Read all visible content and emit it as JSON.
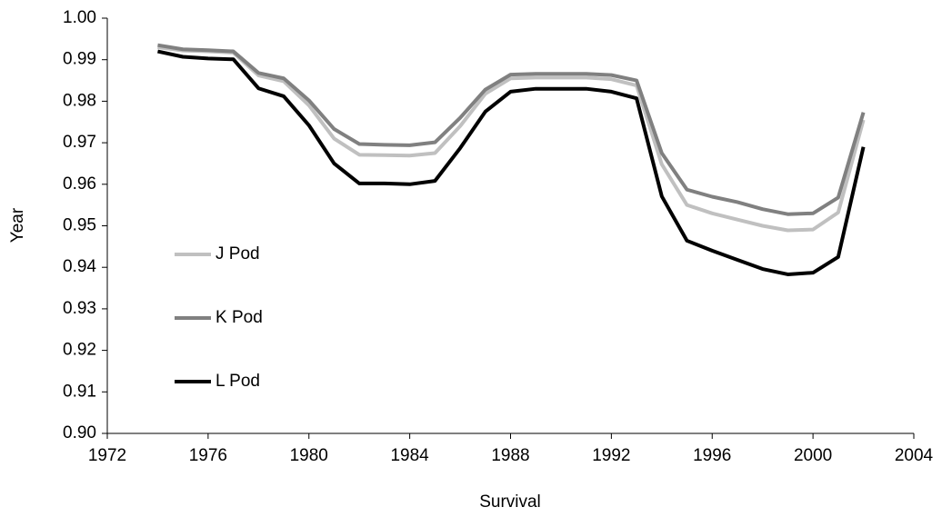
{
  "chart_data": {
    "type": "line",
    "x_label": "Survival",
    "y_label": "Year",
    "x": [
      1974,
      1975,
      1976,
      1977,
      1978,
      1979,
      1980,
      1981,
      1982,
      1983,
      1984,
      1985,
      1986,
      1987,
      1988,
      1989,
      1990,
      1991,
      1992,
      1993,
      1994,
      1995,
      1996,
      1997,
      1998,
      1999,
      2000,
      2001,
      2002
    ],
    "series": [
      {
        "name": "J Pod",
        "color": "#c0c0c0",
        "values": [
          0.993,
          0.9922,
          0.992,
          0.9917,
          0.9862,
          0.9848,
          0.979,
          0.971,
          0.9671,
          0.967,
          0.9669,
          0.9675,
          0.974,
          0.9818,
          0.9855,
          0.9857,
          0.9857,
          0.9857,
          0.9853,
          0.9838,
          0.9648,
          0.955,
          0.953,
          0.9515,
          0.95,
          0.9489,
          0.9491,
          0.9532,
          0.9755
        ]
      },
      {
        "name": "K Pod",
        "color": "#808080",
        "values": [
          0.9935,
          0.9925,
          0.9923,
          0.992,
          0.9868,
          0.9855,
          0.9802,
          0.9733,
          0.9697,
          0.9695,
          0.9694,
          0.9701,
          0.976,
          0.9828,
          0.9864,
          0.9866,
          0.9866,
          0.9866,
          0.9863,
          0.985,
          0.9675,
          0.9587,
          0.957,
          0.9557,
          0.954,
          0.9528,
          0.953,
          0.9568,
          0.9773
        ]
      },
      {
        "name": "L Pod",
        "color": "#000000",
        "values": [
          0.992,
          0.9907,
          0.9903,
          0.9901,
          0.9831,
          0.9812,
          0.9742,
          0.965,
          0.9602,
          0.9602,
          0.96,
          0.9608,
          0.9687,
          0.9775,
          0.9823,
          0.983,
          0.983,
          0.983,
          0.9823,
          0.9807,
          0.9571,
          0.9464,
          0.944,
          0.9418,
          0.9396,
          0.9383,
          0.9387,
          0.9425,
          0.969
        ]
      }
    ],
    "xlim": [
      1972,
      2004
    ],
    "xticks": [
      1972,
      1976,
      1980,
      1984,
      1988,
      1992,
      1996,
      2000,
      2004
    ],
    "ylim": [
      0.9,
      1.0
    ],
    "yticks": [
      {
        "value": 0.9,
        "label": "0.90"
      },
      0.91,
      0.92,
      0.93,
      0.94,
      0.95,
      0.96,
      0.97,
      0.98,
      0.99,
      {
        "value": 1.0,
        "label": "1.00"
      }
    ],
    "grid": false,
    "legend": "left"
  }
}
